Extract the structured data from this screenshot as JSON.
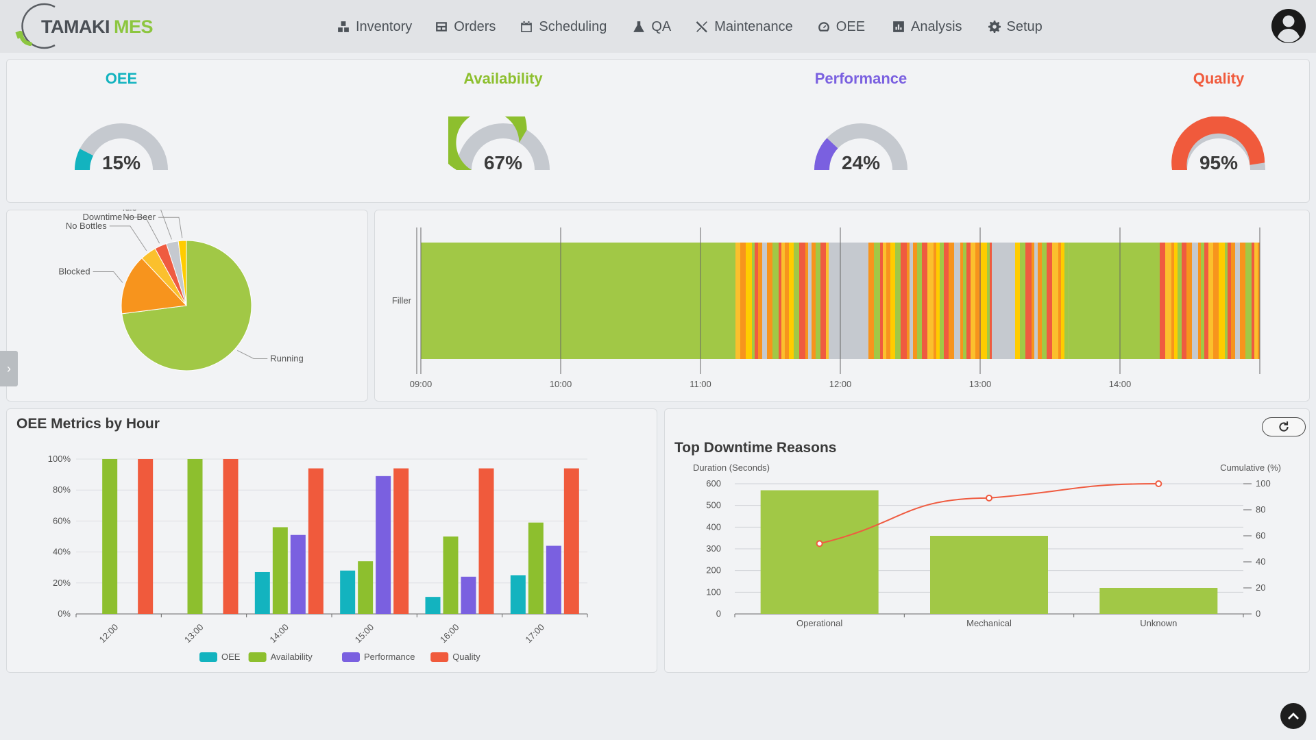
{
  "app": {
    "logo_primary": "TAMAKI",
    "logo_secondary": "MES"
  },
  "nav": [
    {
      "label": "Inventory",
      "icon": "boxes-icon"
    },
    {
      "label": "Orders",
      "icon": "orders-icon"
    },
    {
      "label": "Scheduling",
      "icon": "calendar-icon"
    },
    {
      "label": "QA",
      "icon": "flask-icon"
    },
    {
      "label": "Maintenance",
      "icon": "tools-icon"
    },
    {
      "label": "OEE",
      "icon": "gauge-icon"
    },
    {
      "label": "Analysis",
      "icon": "chart-icon"
    },
    {
      "label": "Setup",
      "icon": "gear-icon"
    }
  ],
  "kpis": [
    {
      "title": "OEE",
      "value": 15,
      "display": "15%",
      "color": "#13b3bf"
    },
    {
      "title": "Availability",
      "value": 67,
      "display": "67%",
      "color": "#8dbf2e"
    },
    {
      "title": "Performance",
      "value": 24,
      "display": "24%",
      "color": "#7a60e0"
    },
    {
      "title": "Quality",
      "value": 95,
      "display": "95%",
      "color": "#f05a3c"
    }
  ],
  "colors": {
    "running": "#a1c846",
    "blocked": "#f7941d",
    "no_bottles": "#fbc02d",
    "downtime": "#ef5b40",
    "idle": "#c5c9cf",
    "no_beer": "#ffcc00",
    "gauge_track": "#c5c9cf"
  },
  "chart_data": [
    {
      "type": "pie",
      "title": "",
      "slices": [
        {
          "label": "Running",
          "value": 73
        },
        {
          "label": "Blocked",
          "value": 15
        },
        {
          "label": "No Bottles",
          "value": 4
        },
        {
          "label": "Downtime",
          "value": 3
        },
        {
          "label": "Idle",
          "value": 3
        },
        {
          "label": "No Beer",
          "value": 2
        }
      ]
    },
    {
      "type": "timeline",
      "title": "",
      "rows": [
        "Filler"
      ],
      "x_ticks": [
        "09:00",
        "10:00",
        "11:00",
        "12:00",
        "13:00",
        "14:00"
      ],
      "x_range": [
        "09:00",
        "15:00"
      ],
      "segments": [
        {
          "start": "09:00",
          "end": "11:15",
          "state": "Running"
        },
        {
          "start": "11:15",
          "end": "11:55",
          "state": "Mixed"
        },
        {
          "start": "11:55",
          "end": "12:10",
          "state": "Idle"
        },
        {
          "start": "12:10",
          "end": "13:05",
          "state": "Mixed"
        },
        {
          "start": "13:05",
          "end": "13:15",
          "state": "Idle"
        },
        {
          "start": "13:15",
          "end": "13:38",
          "state": "Mixed"
        },
        {
          "start": "13:38",
          "end": "14:15",
          "state": "Running"
        },
        {
          "start": "14:15",
          "end": "15:00",
          "state": "Mixed"
        }
      ]
    },
    {
      "type": "bar",
      "title": "OEE Metrics by Hour",
      "categories": [
        "12:00",
        "13:00",
        "14:00",
        "15:00",
        "16:00",
        "17:00"
      ],
      "ylim": [
        0,
        100
      ],
      "y_ticks": [
        "0%",
        "20%",
        "40%",
        "60%",
        "80%",
        "100%"
      ],
      "series": [
        {
          "name": "OEE",
          "values": [
            0,
            0,
            27,
            28,
            11,
            25
          ]
        },
        {
          "name": "Availability",
          "values": [
            100,
            100,
            56,
            34,
            50,
            59
          ]
        },
        {
          "name": "Performance",
          "values": [
            0,
            0,
            51,
            89,
            24,
            44
          ]
        },
        {
          "name": "Quality",
          "values": [
            100,
            100,
            94,
            94,
            94,
            94
          ]
        }
      ],
      "legend": "bottom"
    },
    {
      "type": "bar",
      "title": "Top Downtime Reasons",
      "categories": [
        "Operational",
        "Mechanical",
        "Unknown"
      ],
      "ylabel": "Duration (Seconds)",
      "ylim": [
        0,
        600
      ],
      "y_ticks": [
        "0",
        "100",
        "200",
        "300",
        "400",
        "500",
        "600"
      ],
      "y2label": "Cumulative (%)",
      "y2lim": [
        0,
        100
      ],
      "y2_ticks": [
        "0",
        "20",
        "40",
        "60",
        "80",
        "100"
      ],
      "series": [
        {
          "name": "Duration",
          "values": [
            570,
            360,
            120
          ]
        },
        {
          "name": "Cumulative",
          "type": "line",
          "values": [
            54,
            89,
            100
          ]
        }
      ]
    }
  ]
}
